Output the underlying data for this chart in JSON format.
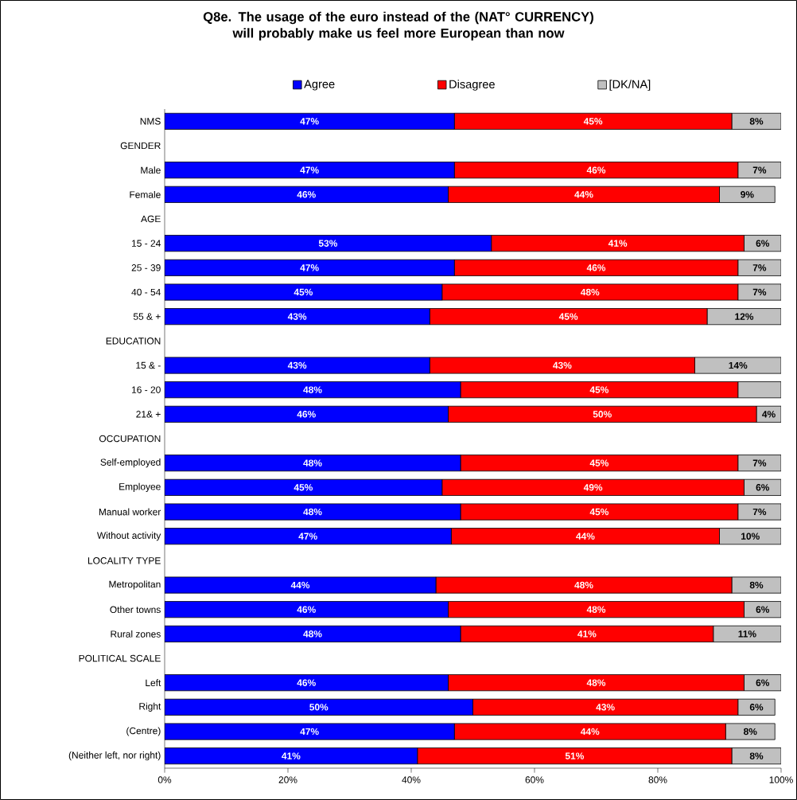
{
  "chart_data": {
    "type": "bar",
    "orientation": "horizontal",
    "stacked": true,
    "title": "Q8e. The usage of the euro instead of the (NAT° CURRENCY) will probably make us feel more European than now",
    "categories": [
      "NMS",
      "GENDER",
      "Male",
      "Female",
      "AGE",
      "15 - 24",
      "25 - 39",
      "40 - 54",
      "55 & +",
      "EDUCATION",
      "15 & -",
      "16 - 20",
      "21& +",
      "OCCUPATION",
      "Self-employed",
      "Employee",
      "Manual worker",
      "Without activity",
      "LOCALITY TYPE",
      "Metropolitan",
      "Other towns",
      "Rural zones",
      "POLITICAL SCALE",
      "Left",
      "Right",
      "(Centre)",
      "(Neither left, nor right)"
    ],
    "series": [
      {
        "name": "Agree",
        "color": "#0000ff",
        "values": [
          47,
          null,
          47,
          46,
          null,
          53,
          47,
          45,
          43,
          null,
          43,
          48,
          46,
          null,
          48,
          45,
          48,
          46.5,
          null,
          44,
          46,
          48,
          null,
          46,
          50,
          47,
          41
        ],
        "value_labels": [
          "47%",
          null,
          "47%",
          "46%",
          null,
          "53%",
          "47%",
          "45%",
          "43%",
          null,
          "43%",
          "48%",
          "46%",
          null,
          "48%",
          "45%",
          "48%",
          "47%",
          null,
          "44%",
          "46%",
          "48%",
          null,
          "46%",
          "50%",
          "47%",
          "41%"
        ]
      },
      {
        "name": "Disagree",
        "color": "#ff0000",
        "values": [
          45,
          null,
          46,
          44,
          null,
          41,
          46,
          48,
          45,
          null,
          43,
          45,
          50,
          null,
          45,
          49,
          45,
          43.5,
          null,
          48,
          48,
          41,
          null,
          48,
          43,
          44,
          51
        ],
        "value_labels": [
          "45%",
          null,
          "46%",
          "44%",
          null,
          "41%",
          "46%",
          "48%",
          "45%",
          null,
          "43%",
          "45%",
          "50%",
          null,
          "45%",
          "49%",
          "45%",
          "44%",
          null,
          "48%",
          "48%",
          "41%",
          null,
          "48%",
          "43%",
          "44%",
          "51%"
        ]
      },
      {
        "name": "[DK/NA]",
        "color": "#c0c0c0",
        "values": [
          8,
          null,
          7,
          9,
          null,
          6,
          7,
          7,
          12,
          null,
          14,
          7,
          4,
          null,
          7,
          6,
          7,
          10,
          null,
          8,
          6,
          11,
          null,
          6,
          6,
          8,
          8
        ],
        "value_labels": [
          "8%",
          null,
          "7%",
          "9%",
          null,
          "6%",
          "7%",
          "7%",
          "12%",
          null,
          "14%",
          null,
          "4%",
          null,
          "7%",
          "6%",
          "7%",
          "10%",
          null,
          "8%",
          "6%",
          "11%",
          null,
          "6%",
          "6%",
          "8%",
          "8%"
        ]
      }
    ],
    "xlim": [
      0,
      100
    ],
    "xticks": [
      {
        "value": 0,
        "label": "0%"
      },
      {
        "value": 20,
        "label": "20%"
      },
      {
        "value": 40,
        "label": "40%"
      },
      {
        "value": 60,
        "label": "60%"
      },
      {
        "value": 80,
        "label": "80%"
      },
      {
        "value": 100,
        "label": "100%"
      }
    ],
    "legend": "top",
    "grid": false
  }
}
